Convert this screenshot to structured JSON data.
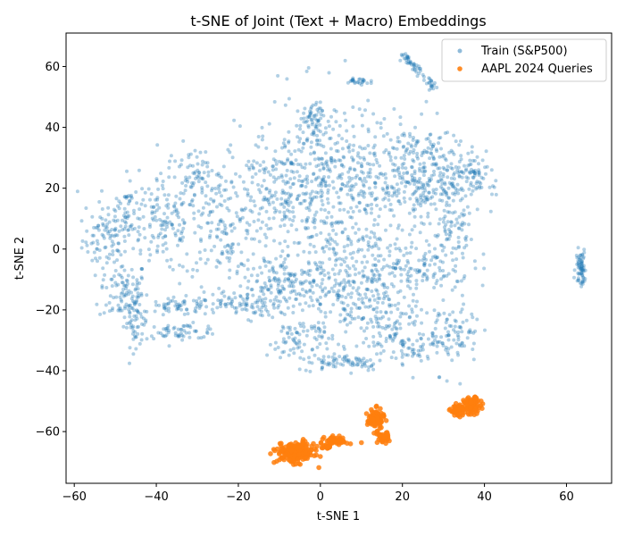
{
  "chart_data": {
    "type": "scatter",
    "title": "t-SNE of Joint (Text + Macro) Embeddings",
    "xlabel": "t-SNE 1",
    "ylabel": "t-SNE 2",
    "xlim": [
      -62,
      71
    ],
    "ylim": [
      -77,
      71
    ],
    "xticks": [
      -60,
      -40,
      -20,
      0,
      20,
      40,
      60
    ],
    "yticks": [
      -60,
      -40,
      -20,
      0,
      20,
      40,
      60
    ],
    "grid": false,
    "legend_position": "top-right",
    "series": [
      {
        "name": "Train (S&P500)",
        "color": "#1f77b4",
        "marker_alpha": 0.35,
        "clusters": [
          {
            "cx": -52,
            "cy": 3,
            "sx": 3.0,
            "sy": 5,
            "n": 80
          },
          {
            "cx": -48,
            "cy": -14,
            "sx": 3.0,
            "sy": 5,
            "n": 90
          },
          {
            "cx": -47,
            "cy": 12,
            "sx": 3.5,
            "sy": 6,
            "n": 80
          },
          {
            "cx": -45,
            "cy": -24,
            "sx": 1.5,
            "sy": 4,
            "n": 50
          },
          {
            "cx": -38,
            "cy": 8,
            "sx": 4.0,
            "sy": 8,
            "n": 110
          },
          {
            "cx": -34,
            "cy": -19,
            "sx": 4.0,
            "sy": 1.5,
            "n": 60
          },
          {
            "cx": -34,
            "cy": -27,
            "sx": 5.0,
            "sy": 1.2,
            "n": 60
          },
          {
            "cx": -30,
            "cy": 22,
            "sx": 4.0,
            "sy": 6,
            "n": 90
          },
          {
            "cx": -24,
            "cy": 6,
            "sx": 5.0,
            "sy": 8,
            "n": 120
          },
          {
            "cx": -20,
            "cy": -18,
            "sx": 5.0,
            "sy": 2,
            "n": 80
          },
          {
            "cx": -10,
            "cy": 18,
            "sx": 6.0,
            "sy": 10,
            "n": 200
          },
          {
            "cx": -8,
            "cy": -12,
            "sx": 7.0,
            "sy": 4,
            "n": 150
          },
          {
            "cx": -5,
            "cy": -30,
            "sx": 4.0,
            "sy": 4,
            "n": 80
          },
          {
            "cx": 0,
            "cy": 27,
            "sx": 7.0,
            "sy": 12,
            "n": 260
          },
          {
            "cx": -2,
            "cy": 43,
            "sx": 1.5,
            "sy": 2.5,
            "n": 40
          },
          {
            "cx": 2,
            "cy": -8,
            "sx": 6.0,
            "sy": 8,
            "n": 140
          },
          {
            "cx": 6,
            "cy": -37,
            "sx": 5.0,
            "sy": 1.5,
            "n": 70
          },
          {
            "cx": 12,
            "cy": 18,
            "sx": 8.0,
            "sy": 9,
            "n": 180
          },
          {
            "cx": 12,
            "cy": -20,
            "sx": 6.0,
            "sy": 4,
            "n": 120
          },
          {
            "cx": 13,
            "cy": -5,
            "sx": 6.0,
            "sy": 5,
            "n": 100
          },
          {
            "cx": 22,
            "cy": 27,
            "sx": 6.0,
            "sy": 9,
            "n": 200
          },
          {
            "cx": 22,
            "cy": -30,
            "sx": 6.0,
            "sy": 4,
            "n": 120
          },
          {
            "cx": 25,
            "cy": -6,
            "sx": 6.0,
            "sy": 5,
            "n": 110
          },
          {
            "cx": 30,
            "cy": 22,
            "sx": 5.0,
            "sy": 7,
            "n": 130
          },
          {
            "cx": 33,
            "cy": -28,
            "sx": 3.0,
            "sy": 6,
            "n": 70
          },
          {
            "cx": 38,
            "cy": 24,
            "sx": 3.0,
            "sy": 3,
            "n": 60
          },
          {
            "cx": 32,
            "cy": 5,
            "sx": 3.0,
            "sy": 4,
            "n": 50
          },
          {
            "cx": 9,
            "cy": 55,
            "sx": 1.5,
            "sy": 0.7,
            "n": 25
          },
          {
            "cx": 63.5,
            "cy": -6,
            "sx": 0.6,
            "sy": 3,
            "n": 70
          }
        ],
        "arcs": [
          {
            "x0": 20,
            "y0": 64,
            "x1": 28,
            "y1": 53,
            "n": 60,
            "spread": 0.6
          }
        ]
      },
      {
        "name": "AAPL 2024 Queries",
        "color": "#ff7f0e",
        "marker_alpha": 0.85,
        "clusters": [
          {
            "cx": -6,
            "cy": -67,
            "sx": 2.2,
            "sy": 1.6,
            "n": 220
          },
          {
            "cx": 4,
            "cy": -63,
            "sx": 1.4,
            "sy": 0.7,
            "n": 60
          },
          {
            "cx": 1.5,
            "cy": -65,
            "sx": 0.6,
            "sy": 0.5,
            "n": 20
          },
          {
            "cx": 13.5,
            "cy": -56,
            "sx": 1.0,
            "sy": 1.6,
            "n": 90
          },
          {
            "cx": 15.2,
            "cy": -62,
            "sx": 0.7,
            "sy": 0.9,
            "n": 45
          },
          {
            "cx": 33.5,
            "cy": -53,
            "sx": 0.9,
            "sy": 0.9,
            "n": 50
          },
          {
            "cx": 37,
            "cy": -51.5,
            "sx": 1.0,
            "sy": 1.3,
            "n": 80
          }
        ]
      }
    ]
  }
}
